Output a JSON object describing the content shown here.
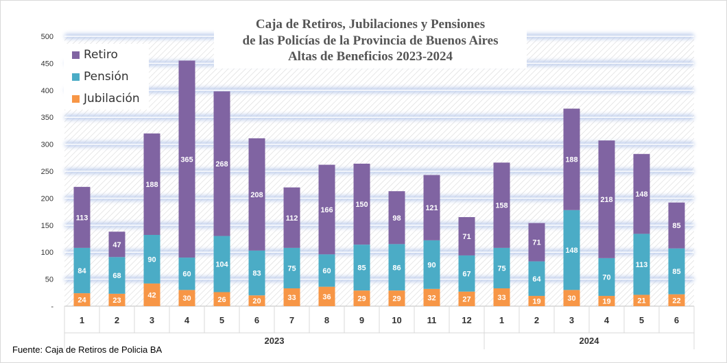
{
  "chart_data": {
    "type": "bar",
    "stacked": true,
    "title_lines": [
      "Caja de Retiros, Jubilaciones y Pensiones",
      "de las Policías de la Provincia de Buenos Aires",
      "Altas de Beneficios 2023-2024"
    ],
    "categories": [
      "1",
      "2",
      "3",
      "4",
      "5",
      "6",
      "7",
      "8",
      "9",
      "10",
      "11",
      "12",
      "1",
      "2",
      "3",
      "4",
      "5",
      "6"
    ],
    "groups": [
      {
        "label": "2023",
        "count": 12
      },
      {
        "label": "2024",
        "count": 6
      }
    ],
    "series": [
      {
        "name": "Jubilación",
        "color": "#f79646",
        "values": [
          24,
          23,
          42,
          30,
          26,
          20,
          33,
          36,
          29,
          29,
          32,
          27,
          33,
          19,
          30,
          19,
          21,
          22
        ]
      },
      {
        "name": "Pensión",
        "color": "#4bacc6",
        "values": [
          84,
          68,
          90,
          60,
          104,
          83,
          75,
          60,
          85,
          86,
          90,
          67,
          75,
          64,
          148,
          70,
          113,
          85
        ]
      },
      {
        "name": "Retiro",
        "color": "#8064a2",
        "values": [
          113,
          47,
          188,
          365,
          268,
          208,
          112,
          166,
          150,
          98,
          121,
          71,
          158,
          71,
          188,
          218,
          148,
          85
        ]
      }
    ],
    "y_ticks": [
      "-",
      "50",
      "100",
      "150",
      "200",
      "250",
      "300",
      "350",
      "400",
      "450",
      "500"
    ],
    "ylim": [
      0,
      500
    ],
    "legend_position": "top-left",
    "grid": true
  },
  "legend": {
    "items": [
      {
        "name": "Retiro",
        "color": "#8064a2"
      },
      {
        "name": "Pensión",
        "color": "#4bacc6"
      },
      {
        "name": "Jubilación",
        "color": "#f79646"
      }
    ]
  },
  "footer": {
    "source": "Fuente: Caja de Retiros de Policia BA"
  }
}
